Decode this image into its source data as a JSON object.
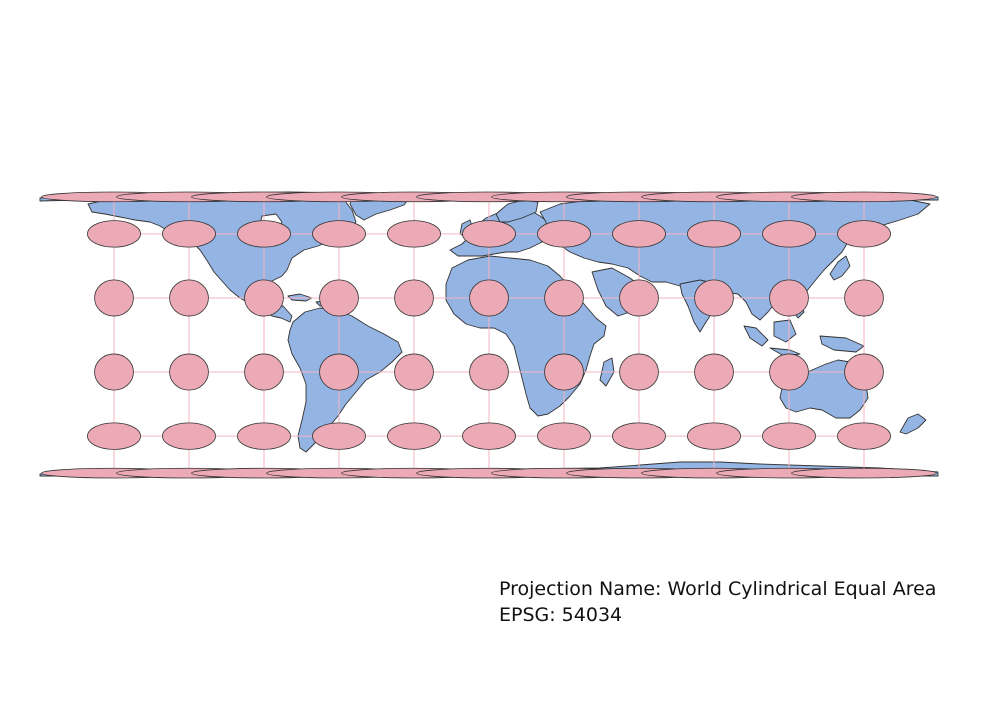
{
  "map": {
    "projection_label": "Projection Name: World Cylindrical Equal Area",
    "epsg_label": "EPSG: 54034",
    "colors": {
      "land": "#94b4e4",
      "coastline": "#333333",
      "graticule": "#f4b6c2",
      "indicatrix_fill": "#ecaab6",
      "indicatrix_stroke": "#333333",
      "background": "#ffffff"
    },
    "graticule": {
      "longitudes": [
        -150,
        -120,
        -90,
        -60,
        -30,
        0,
        30,
        60,
        90,
        120,
        150
      ],
      "latitudes": [
        -75,
        -45,
        -15,
        15,
        45,
        75
      ]
    },
    "tissot_indicatrix": {
      "radius_deg": 7.5,
      "centers_lon": [
        -150,
        -120,
        -90,
        -60,
        -30,
        0,
        30,
        60,
        90,
        120,
        150
      ],
      "centers_lat": [
        75,
        45,
        15,
        -15,
        -45,
        -75
      ]
    }
  }
}
